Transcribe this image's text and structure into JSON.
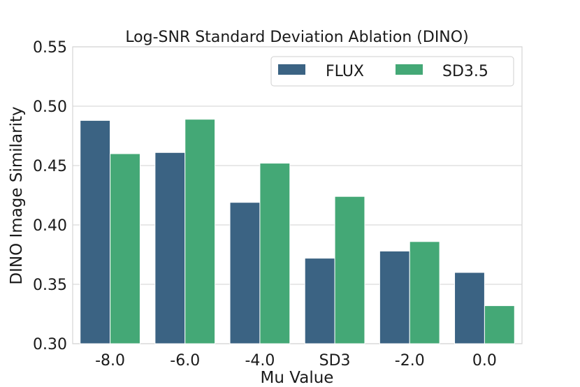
{
  "chart_data": {
    "type": "bar",
    "title": "Log-SNR Standard Deviation Ablation (DINO)",
    "xlabel": "Mu Value",
    "ylabel": "DINO Image Similarity",
    "categories": [
      "-8.0",
      "-6.0",
      "-4.0",
      "SD3",
      "-2.0",
      "0.0"
    ],
    "series": [
      {
        "name": "FLUX",
        "color": "#3b6383",
        "values": [
          0.488,
          0.461,
          0.419,
          0.372,
          0.378,
          0.36
        ]
      },
      {
        "name": "SD3.5",
        "color": "#44a876",
        "values": [
          0.46,
          0.489,
          0.452,
          0.424,
          0.386,
          0.332
        ]
      }
    ],
    "ylim": [
      0.3,
      0.55
    ],
    "yticks": [
      "0.30",
      "0.35",
      "0.40",
      "0.45",
      "0.50",
      "0.55"
    ],
    "grid": true,
    "legend_position": "top-right"
  }
}
